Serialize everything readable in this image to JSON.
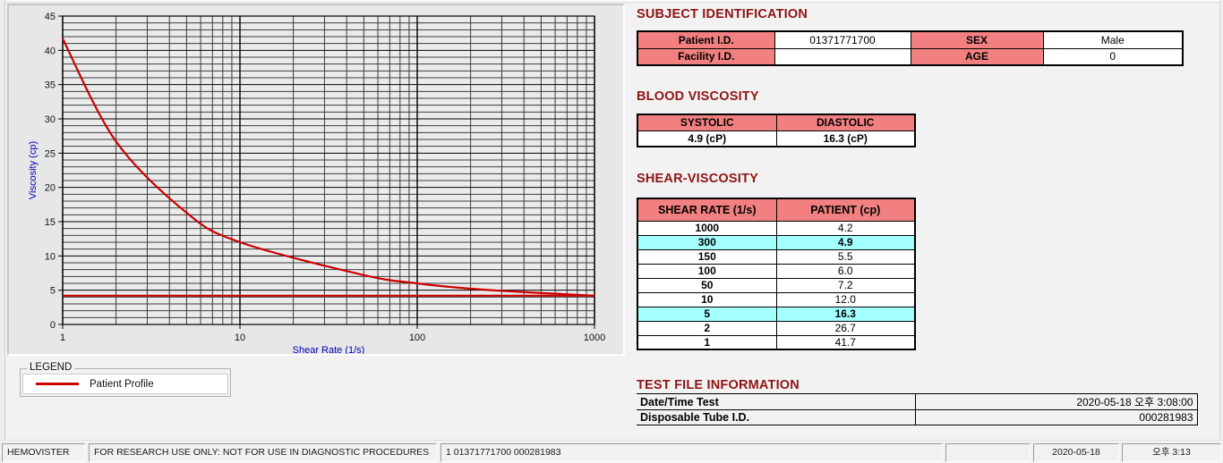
{
  "chart": {
    "xlabel": "Shear Rate (1/s)",
    "ylabel": "Viscosity (cp)"
  },
  "chart_data": {
    "type": "line",
    "title": "",
    "xlabel": "Shear Rate (1/s)",
    "ylabel": "Viscosity (cp)",
    "xscale": "log",
    "xlim": [
      1,
      1000
    ],
    "ylim": [
      0,
      45
    ],
    "x_ticks": [
      1,
      10,
      100,
      1000
    ],
    "y_major_step": 5,
    "y_minor_step": 1,
    "grid": "on",
    "x": [
      1,
      2,
      5,
      10,
      50,
      100,
      150,
      300,
      1000
    ],
    "series": [
      {
        "name": "Patient Profile",
        "color": "#cc0000",
        "values": [
          41.7,
          26.7,
          16.3,
          12.0,
          7.2,
          6.0,
          5.5,
          4.9,
          4.2
        ]
      }
    ],
    "baseline": 4.2
  },
  "legend": {
    "box_label": "LEGEND",
    "entries": [
      {
        "label": "Patient Profile",
        "color": "#cc0000"
      }
    ]
  },
  "subject": {
    "title": "SUBJECT IDENTIFICATION",
    "rows": [
      {
        "c0_label": "Patient I.D.",
        "c0_value": "01371771700",
        "c1_label": "SEX",
        "c1_value": "Male"
      },
      {
        "c0_label": "Facility I.D.",
        "c0_value": "",
        "c1_label": "AGE",
        "c1_value": "0"
      }
    ]
  },
  "blood": {
    "title": "BLOOD VISCOSITY",
    "headers": [
      "SYSTOLIC",
      "DIASTOLIC"
    ],
    "values": [
      "4.9 (cP)",
      "16.3 (cP)"
    ]
  },
  "shear": {
    "title": "SHEAR-VISCOSITY",
    "headers": [
      "SHEAR RATE (1/s)",
      "PATIENT (cp)"
    ],
    "rows": [
      {
        "rate": "1000",
        "value": "4.2",
        "highlight": false
      },
      {
        "rate": "300",
        "value": "4.9",
        "highlight": true
      },
      {
        "rate": "150",
        "value": "5.5",
        "highlight": false
      },
      {
        "rate": "100",
        "value": "6.0",
        "highlight": false
      },
      {
        "rate": "50",
        "value": "7.2",
        "highlight": false
      },
      {
        "rate": "10",
        "value": "12.0",
        "highlight": false
      },
      {
        "rate": "5",
        "value": "16.3",
        "highlight": true
      },
      {
        "rate": "2",
        "value": "26.7",
        "highlight": false
      },
      {
        "rate": "1",
        "value": "41.7",
        "highlight": false
      }
    ]
  },
  "testfile": {
    "title": "TEST FILE INFORMATION",
    "rows": [
      {
        "label": "Date/Time Test",
        "value": "2020-05-18  오후 3:08:00"
      },
      {
        "label": "Disposable Tube I.D.",
        "value": "000281983"
      }
    ]
  },
  "status": {
    "items": [
      "HEMOVISTER",
      "FOR RESEARCH USE ONLY: NOT FOR USE IN DIAGNOSTIC PROCEDURES",
      "1  01371771700  000281983",
      "",
      "2020-05-18",
      "오후 3:13"
    ]
  },
  "colors": {
    "title_red": "#8f1414",
    "header_pink": "#f28080",
    "highlight_cyan": "#a4ffff",
    "curve_red": "#cc0000",
    "axis_label_blue": "#0000bb"
  }
}
